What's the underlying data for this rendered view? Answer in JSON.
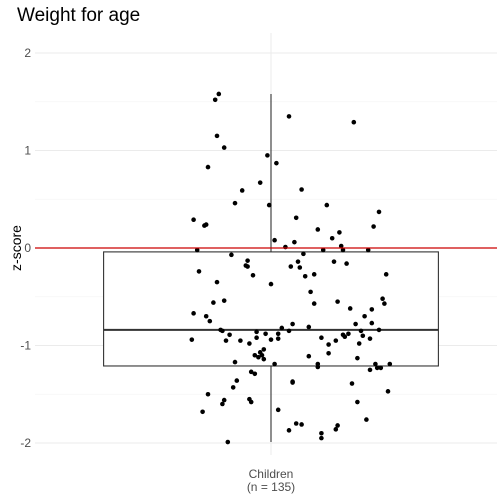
{
  "chart_data": {
    "type": "boxplot",
    "title": "Weight for age",
    "xlabel": "",
    "ylabel": "z-score",
    "categories": [
      "Children\n(n = 135)"
    ],
    "ylim": [
      -2.15,
      2.15
    ],
    "y_ticks": [
      -2,
      -1,
      0,
      1,
      2
    ],
    "grid": true,
    "reference_line": {
      "y": 0,
      "color": "#cc0000"
    },
    "box": {
      "min": -1.99,
      "q1": -1.21,
      "median": -0.84,
      "q3": -0.04,
      "max": 1.58
    },
    "points": [
      [
        -0.44,
        -0.94
      ],
      [
        -0.43,
        -0.67
      ],
      [
        -0.43,
        0.29
      ],
      [
        -0.41,
        -0.02
      ],
      [
        -0.4,
        -0.24
      ],
      [
        -0.38,
        -1.68
      ],
      [
        -0.37,
        0.23
      ],
      [
        -0.36,
        -0.7
      ],
      [
        -0.36,
        0.24
      ],
      [
        -0.35,
        -1.5
      ],
      [
        -0.35,
        0.83
      ],
      [
        -0.34,
        -0.75
      ],
      [
        -0.32,
        -0.56
      ],
      [
        -0.31,
        1.52
      ],
      [
        -0.3,
        -0.35
      ],
      [
        -0.3,
        1.15
      ],
      [
        -0.29,
        1.58
      ],
      [
        -0.28,
        -0.84
      ],
      [
        -0.27,
        -0.85
      ],
      [
        -0.27,
        -1.6
      ],
      [
        -0.26,
        1.03
      ],
      [
        -0.26,
        -0.54
      ],
      [
        -0.26,
        -1.56
      ],
      [
        -0.25,
        -0.95
      ],
      [
        -0.24,
        -1.99
      ],
      [
        -0.23,
        -0.89
      ],
      [
        -0.22,
        -0.07
      ],
      [
        -0.21,
        -1.43
      ],
      [
        -0.2,
        -1.17
      ],
      [
        -0.2,
        0.46
      ],
      [
        -0.19,
        -1.36
      ],
      [
        -0.17,
        -0.95
      ],
      [
        -0.16,
        0.59
      ],
      [
        -0.14,
        -0.18
      ],
      [
        -0.13,
        -0.13
      ],
      [
        -0.13,
        -0.19
      ],
      [
        -0.12,
        -1.55
      ],
      [
        -0.12,
        -0.98
      ],
      [
        -0.11,
        -1.58
      ],
      [
        -0.11,
        -1.27
      ],
      [
        -0.1,
        -0.28
      ],
      [
        -0.09,
        -1.1
      ],
      [
        -0.09,
        -1.29
      ],
      [
        -0.08,
        -0.86
      ],
      [
        -0.08,
        -0.92
      ],
      [
        -0.07,
        -1.12
      ],
      [
        -0.06,
        -1.07
      ],
      [
        -0.06,
        0.67
      ],
      [
        -0.05,
        -1.1
      ],
      [
        -0.04,
        -1.14
      ],
      [
        -0.04,
        -1.04
      ],
      [
        -0.03,
        -0.88
      ],
      [
        -0.02,
        0.95
      ],
      [
        -0.01,
        0.44
      ],
      [
        0.0,
        -0.37
      ],
      [
        0.0,
        -0.94
      ],
      [
        0.02,
        0.08
      ],
      [
        0.02,
        -1.19
      ],
      [
        0.03,
        0.87
      ],
      [
        0.04,
        -0.88
      ],
      [
        0.04,
        -0.93
      ],
      [
        0.04,
        -1.66
      ],
      [
        0.06,
        -0.82
      ],
      [
        0.08,
        0.01
      ],
      [
        0.1,
        -0.85
      ],
      [
        0.1,
        1.35
      ],
      [
        0.1,
        -1.87
      ],
      [
        0.11,
        -0.19
      ],
      [
        0.12,
        -0.78
      ],
      [
        0.12,
        -1.38
      ],
      [
        0.12,
        -1.37
      ],
      [
        0.13,
        0.06
      ],
      [
        0.14,
        0.31
      ],
      [
        0.14,
        -1.8
      ],
      [
        0.15,
        -0.14
      ],
      [
        0.16,
        -0.2
      ],
      [
        0.17,
        0.6
      ],
      [
        0.17,
        -1.81
      ],
      [
        0.18,
        -0.06
      ],
      [
        0.19,
        -0.29
      ],
      [
        0.21,
        -1.11
      ],
      [
        0.21,
        -0.81
      ],
      [
        0.22,
        -0.45
      ],
      [
        0.24,
        -0.57
      ],
      [
        0.24,
        -0.27
      ],
      [
        0.26,
        -1.19
      ],
      [
        0.26,
        -1.22
      ],
      [
        0.26,
        0.19
      ],
      [
        0.28,
        -1.95
      ],
      [
        0.28,
        -1.9
      ],
      [
        0.28,
        -0.92
      ],
      [
        0.29,
        -0.02
      ],
      [
        0.31,
        0.44
      ],
      [
        0.32,
        -1.08
      ],
      [
        0.32,
        -0.99
      ],
      [
        0.34,
        0.1
      ],
      [
        0.35,
        -0.14
      ],
      [
        0.36,
        -1.86
      ],
      [
        0.36,
        -0.95
      ],
      [
        0.37,
        -0.55
      ],
      [
        0.37,
        -1.82
      ],
      [
        0.38,
        0.16
      ],
      [
        0.39,
        0.02
      ],
      [
        0.4,
        -0.89
      ],
      [
        0.4,
        -0.02
      ],
      [
        0.41,
        -0.91
      ],
      [
        0.42,
        -0.16
      ],
      [
        0.43,
        -0.88
      ],
      [
        0.44,
        -0.62
      ],
      [
        0.45,
        -1.39
      ],
      [
        0.46,
        1.29
      ],
      [
        0.47,
        -0.78
      ],
      [
        0.48,
        -1.13
      ],
      [
        0.48,
        -1.58
      ],
      [
        0.49,
        -0.98
      ],
      [
        0.5,
        -0.85
      ],
      [
        0.51,
        -0.9
      ],
      [
        0.52,
        -0.7
      ],
      [
        0.53,
        -1.76
      ],
      [
        0.54,
        -0.02
      ],
      [
        0.55,
        -1.25
      ],
      [
        0.55,
        -0.93
      ],
      [
        0.56,
        -0.63
      ],
      [
        0.56,
        -0.77
      ],
      [
        0.57,
        0.22
      ],
      [
        0.58,
        -1.19
      ],
      [
        0.59,
        -1.23
      ],
      [
        0.6,
        -0.84
      ],
      [
        0.6,
        0.37
      ],
      [
        0.61,
        -1.23
      ],
      [
        0.62,
        -0.52
      ],
      [
        0.63,
        -0.57
      ],
      [
        0.64,
        -0.27
      ],
      [
        0.65,
        -1.47
      ],
      [
        0.66,
        -1.19
      ]
    ]
  }
}
